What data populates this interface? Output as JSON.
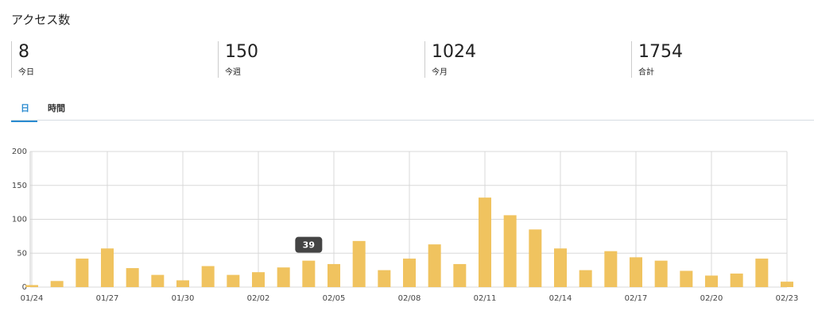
{
  "header": {
    "title": "アクセス数"
  },
  "stats": [
    {
      "value": 8,
      "label": "今日"
    },
    {
      "value": 150,
      "label": "今週"
    },
    {
      "value": 1024,
      "label": "今月"
    },
    {
      "value": 1754,
      "label": "合計"
    }
  ],
  "tabs": [
    "日",
    "時間"
  ],
  "chart_data": {
    "type": "bar",
    "categories": [
      "01/24",
      null,
      null,
      "01/27",
      null,
      null,
      "01/30",
      null,
      null,
      "02/02",
      null,
      null,
      "02/05",
      null,
      null,
      "02/08",
      null,
      null,
      "02/11",
      null,
      null,
      "02/14",
      null,
      null,
      "02/17",
      null,
      null,
      "02/20",
      null,
      null,
      "02/23"
    ],
    "values": [
      3,
      9,
      42,
      57,
      28,
      18,
      10,
      31,
      18,
      22,
      29,
      39,
      34,
      68,
      25,
      42,
      63,
      34,
      132,
      106,
      85,
      57,
      25,
      53,
      44,
      39,
      24,
      17,
      20,
      42,
      8
    ],
    "color": "#f0c35f",
    "ylim": [
      0,
      200
    ],
    "yticks": [
      0,
      50,
      100,
      150,
      200
    ],
    "grid": true
  }
}
